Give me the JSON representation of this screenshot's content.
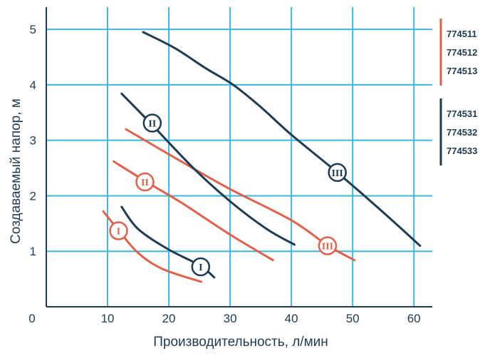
{
  "chart_data": {
    "type": "line",
    "xlabel": "Производительность, л/мин",
    "ylabel": "Создаваемый напор, м",
    "xlim": [
      0,
      63
    ],
    "ylim": [
      0,
      5.4
    ],
    "x_ticks": [
      "0",
      "10",
      "20",
      "30",
      "40",
      "50",
      "60"
    ],
    "y_ticks": [
      "1",
      "2",
      "3",
      "4",
      "5"
    ],
    "grid": true,
    "grid_color": "#3cb7e3",
    "legend": [
      {
        "items": [
          "774511",
          "774512",
          "774513"
        ],
        "color": "#e0604a"
      },
      {
        "items": [
          "774531",
          "774532",
          "774533"
        ],
        "color": "#1d3b52"
      }
    ],
    "series": [
      {
        "label": "I",
        "color": "#e0604a",
        "x": [
          9.3,
          12,
          15,
          19,
          25.3
        ],
        "y": [
          1.72,
          1.35,
          0.97,
          0.68,
          0.45
        ],
        "marker": [
          11.8,
          1.37
        ]
      },
      {
        "label": "II",
        "color": "#e0604a",
        "x": [
          11,
          16.5,
          22,
          30,
          37
        ],
        "y": [
          2.62,
          2.24,
          1.88,
          1.3,
          0.84
        ],
        "marker": [
          16.1,
          2.25
        ]
      },
      {
        "label": "III",
        "color": "#e0604a",
        "x": [
          13,
          22,
          30,
          40,
          46,
          50.3
        ],
        "y": [
          3.2,
          2.62,
          2.12,
          1.56,
          1.1,
          0.84
        ],
        "marker": [
          45.9,
          1.1
        ]
      },
      {
        "label": "I",
        "color": "#1d3b52",
        "x": [
          12.3,
          15,
          20,
          25,
          27.4
        ],
        "y": [
          1.8,
          1.4,
          1.03,
          0.75,
          0.53
        ],
        "marker": [
          25.2,
          0.72
        ]
      },
      {
        "label": "II",
        "color": "#1d3b52",
        "x": [
          12.3,
          17,
          24,
          30,
          36,
          40.5
        ],
        "y": [
          3.84,
          3.31,
          2.5,
          1.9,
          1.4,
          1.12
        ],
        "marker": [
          17.3,
          3.31
        ]
      },
      {
        "label": "III",
        "color": "#1d3b52",
        "x": [
          15.8,
          21,
          26,
          30.5,
          35,
          40,
          47.5,
          55,
          61
        ],
        "y": [
          4.95,
          4.66,
          4.3,
          4.0,
          3.6,
          3.1,
          2.42,
          1.7,
          1.1
        ],
        "marker": [
          47.5,
          2.42
        ]
      }
    ]
  }
}
